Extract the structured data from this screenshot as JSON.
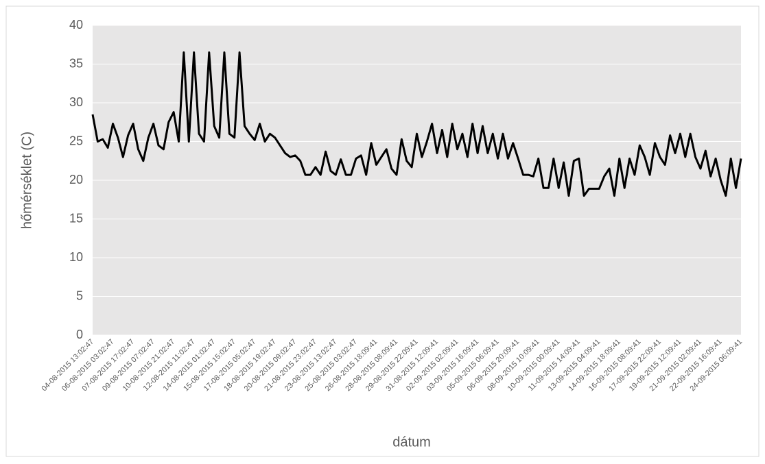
{
  "chart_data": {
    "type": "line",
    "x_label": "dátum",
    "y_label": "hőmérséklet (C)",
    "ylim": [
      0,
      40
    ],
    "yticks": [
      0,
      5,
      10,
      15,
      20,
      25,
      30,
      35,
      40
    ],
    "grid": true,
    "categories": [
      "04-08-2015 13:02:47",
      null,
      null,
      null,
      "06-08-2015 03:02:47",
      null,
      null,
      null,
      "07-08-2015 17:02:47",
      null,
      null,
      null,
      "09-08-2015 07:02:47",
      null,
      null,
      null,
      "10-08-2015 21:02:47",
      null,
      null,
      null,
      "12-08-2015 11:02:47",
      null,
      null,
      null,
      "14-08-2015 01:02:47",
      null,
      null,
      null,
      "15-08-2015 15:02:47",
      null,
      null,
      null,
      "17-08-2015 05:02:47",
      null,
      null,
      null,
      "18-08-2015 19:02:47",
      null,
      null,
      null,
      "20-08-2015 09:02:47",
      null,
      null,
      null,
      "21-08-2015 23:02:47",
      null,
      null,
      null,
      "23-08-2015 13:02:47",
      null,
      null,
      null,
      "25-08-2015 03:02:47",
      null,
      null,
      null,
      "26-08-2015 18:09:41",
      null,
      null,
      null,
      "28-08-2015 08:09:41",
      null,
      null,
      null,
      "29-08-2015 22:09:41",
      null,
      null,
      null,
      "31-08-2015 12:09:41",
      null,
      null,
      null,
      "02-09-2015 02:09:41",
      null,
      null,
      null,
      "03-09-2015 16:09:41",
      null,
      null,
      null,
      "05-09-2015 06:09:41",
      null,
      null,
      null,
      "06-09-2015 20:09:41",
      null,
      null,
      null,
      "08-09-2015 10:09:41",
      null,
      null,
      null,
      "10-09-2015 00:09:41",
      null,
      null,
      null,
      "11-09-2015 14:09:41",
      null,
      null,
      null,
      "13-09-2015 04:09:41",
      null,
      null,
      null,
      "14-09-2015 18:09:41",
      null,
      null,
      null,
      "16-09-2015 08:09:41",
      null,
      null,
      null,
      "17-09-2015 22:09:41",
      null,
      null,
      null,
      "19-09-2015 12:09:41",
      null,
      null,
      null,
      "21-09-2015 02:09:41",
      null,
      null,
      null,
      "22-09-2015 16:09:41",
      null,
      null,
      null,
      "24-09-2015 06:09:41"
    ],
    "color": "#000000",
    "values": [
      28.5,
      25,
      25.3,
      24.2,
      27.3,
      25.5,
      23,
      25.8,
      27.3,
      24,
      22.5,
      25.5,
      27.3,
      24.5,
      24,
      27.5,
      28.8,
      25,
      36.5,
      25,
      36.5,
      26,
      25,
      36.5,
      27,
      25.5,
      36.5,
      26,
      25.5,
      36.5,
      27,
      26,
      25.2,
      27.3,
      25,
      26,
      25.5,
      24.5,
      23.5,
      23,
      23.2,
      22.5,
      20.7,
      20.7,
      21.7,
      20.7,
      23.7,
      21.2,
      20.7,
      22.7,
      20.7,
      20.7,
      22.8,
      23.2,
      20.7,
      24.8,
      22,
      23,
      24,
      21.5,
      20.7,
      25.3,
      22.5,
      21.7,
      26,
      23,
      25,
      27.3,
      23.5,
      26.5,
      23,
      27.3,
      24,
      26,
      23,
      27.3,
      23.5,
      27,
      23.5,
      26,
      22.8,
      26,
      22.8,
      24.8,
      22.8,
      20.7,
      20.7,
      20.5,
      22.8,
      19,
      19,
      22.8,
      19,
      22.3,
      18,
      22.5,
      22.8,
      18,
      18.9,
      18.9,
      18.9,
      20.5,
      21.5,
      18,
      22.8,
      19,
      22.8,
      20.7,
      24.5,
      23,
      20.7,
      24.8,
      23,
      22,
      25.8,
      23.5,
      26,
      23,
      26,
      23,
      21.5,
      23.8,
      20.5,
      22.8,
      20,
      18,
      22.8,
      19,
      22.8
    ]
  }
}
